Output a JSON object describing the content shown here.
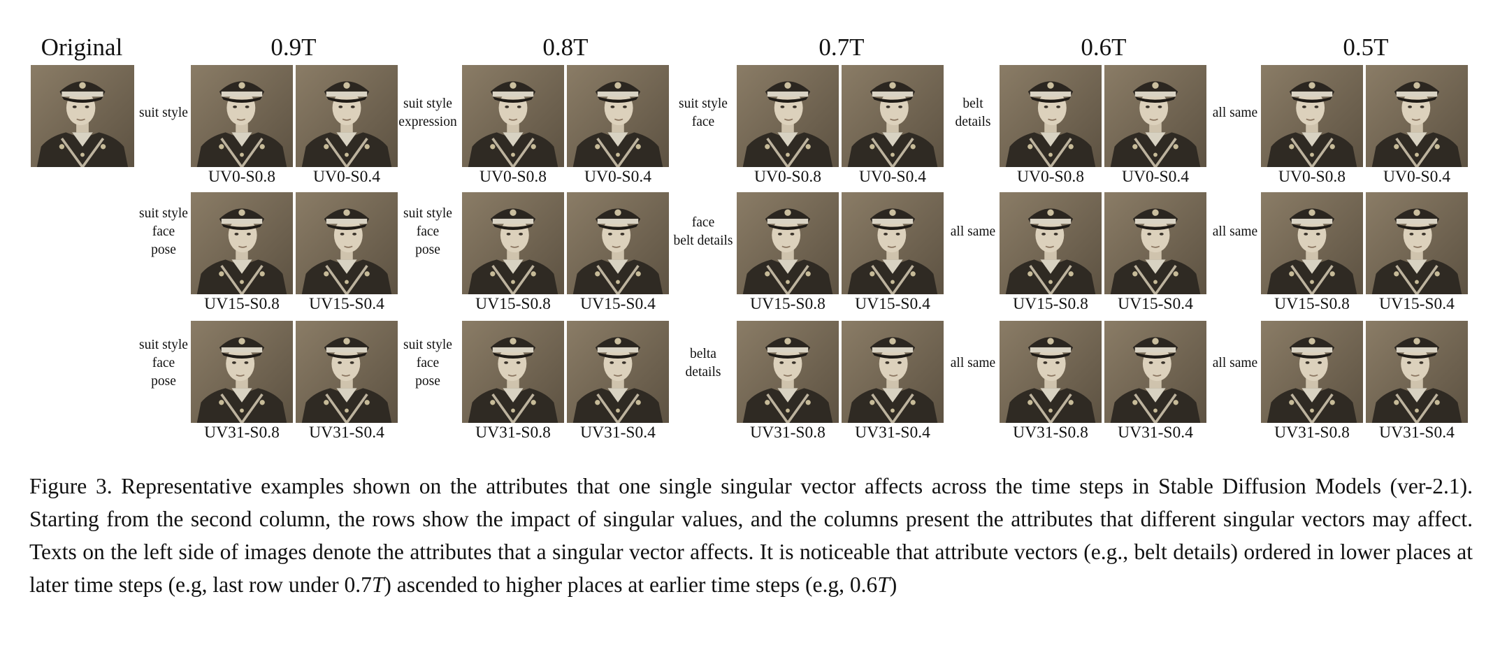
{
  "figure": {
    "original_label": "Original",
    "columns": [
      {
        "header": "0.9T",
        "rows": [
          {
            "attr": "suit style",
            "labels": [
              "UV0-S0.8",
              "UV0-S0.4"
            ]
          },
          {
            "attr": "suit style\nface\npose",
            "labels": [
              "UV15-S0.8",
              "UV15-S0.4"
            ]
          },
          {
            "attr": "suit style\nface\npose",
            "labels": [
              "UV31-S0.8",
              "UV31-S0.4"
            ]
          }
        ]
      },
      {
        "header": "0.8T",
        "rows": [
          {
            "attr": "suit style\nexpression",
            "labels": [
              "UV0-S0.8",
              "UV0-S0.4"
            ]
          },
          {
            "attr": "suit style\nface\npose",
            "labels": [
              "UV15-S0.8",
              "UV15-S0.4"
            ]
          },
          {
            "attr": "suit style\nface\npose",
            "labels": [
              "UV31-S0.8",
              "UV31-S0.4"
            ]
          }
        ]
      },
      {
        "header": "0.7T",
        "rows": [
          {
            "attr": "suit style\nface",
            "labels": [
              "UV0-S0.8",
              "UV0-S0.4"
            ]
          },
          {
            "attr": "face\nbelt details",
            "labels": [
              "UV15-S0.8",
              "UV15-S0.4"
            ]
          },
          {
            "attr": "belta\ndetails",
            "labels": [
              "UV31-S0.8",
              "UV31-S0.4"
            ]
          }
        ]
      },
      {
        "header": "0.6T",
        "rows": [
          {
            "attr": "belt\ndetails",
            "labels": [
              "UV0-S0.8",
              "UV0-S0.4"
            ]
          },
          {
            "attr": "all same",
            "labels": [
              "UV15-S0.8",
              "UV15-S0.4"
            ]
          },
          {
            "attr": "all same",
            "labels": [
              "UV31-S0.8",
              "UV31-S0.4"
            ]
          }
        ]
      },
      {
        "header": "0.5T",
        "rows": [
          {
            "attr": "all same",
            "labels": [
              "UV0-S0.8",
              "UV0-S0.4"
            ]
          },
          {
            "attr": "all same",
            "labels": [
              "UV15-S0.8",
              "UV15-S0.4"
            ]
          },
          {
            "attr": "all same",
            "labels": [
              "UV31-S0.8",
              "UV31-S0.4"
            ]
          }
        ]
      }
    ]
  },
  "caption": {
    "part1": "Figure 3. Representative examples shown on the attributes that one single singular vector affects across the time steps in Stable Diffusion Models (ver-2.1). Starting from the second column, the rows show the impact of singular values, and the columns present the attributes that different singular vectors may affect. Texts on the left side of images denote the attributes that a singular vector affects. It is noticeable that attribute vectors (e.g., belt details) ordered in lower places at later time steps (e.g, last row under 0.7",
    "t1": "T",
    "part2": ") ascended to higher places at earlier time steps (e.g, 0.6",
    "t2": "T",
    "part3": ")"
  }
}
